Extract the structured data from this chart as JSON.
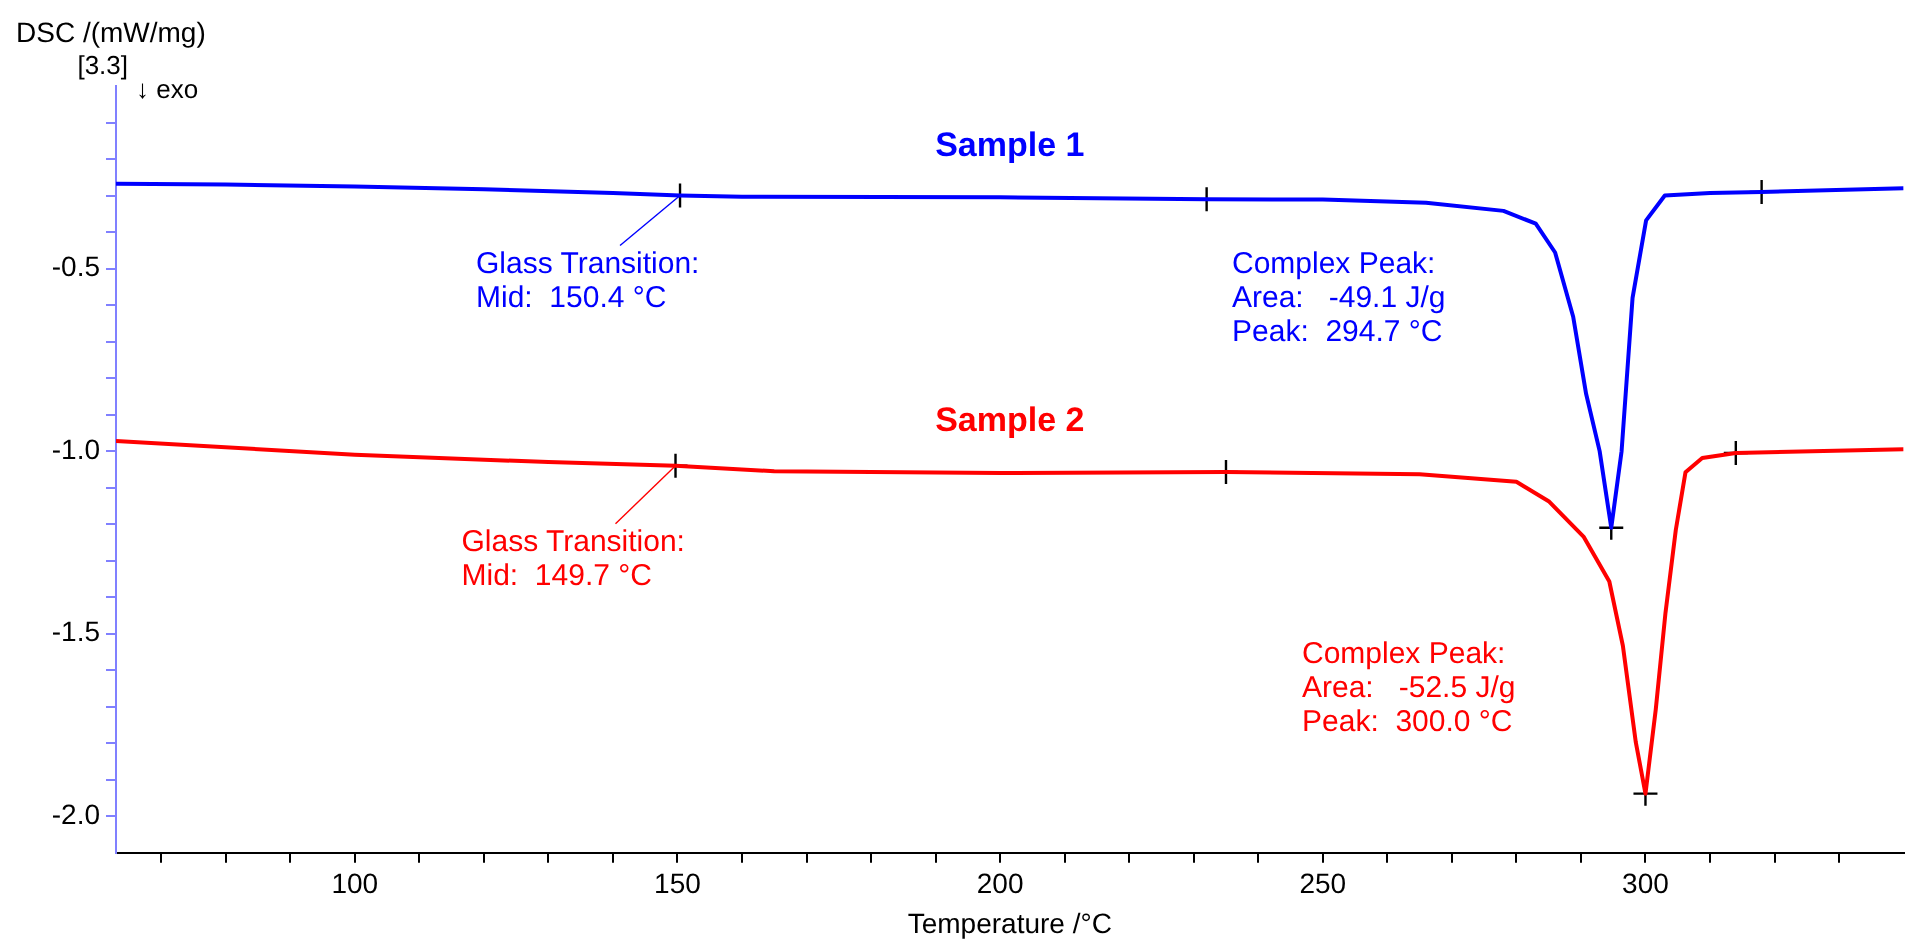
{
  "chart_data": {
    "type": "line",
    "xlabel": "Temperature /°C",
    "ylabel": "DSC /(mW/mg)",
    "xlim": [
      63,
      340
    ],
    "ylim": [
      -2.1,
      0
    ],
    "xticks": [
      {
        "value": 70,
        "label": null
      },
      {
        "value": 80,
        "label": null
      },
      {
        "value": 90,
        "label": null
      },
      100,
      {
        "value": 110,
        "label": null
      },
      {
        "value": 120,
        "label": null
      },
      {
        "value": 130,
        "label": null
      },
      {
        "value": 140,
        "label": null
      },
      150,
      {
        "value": 160,
        "label": null
      },
      {
        "value": 170,
        "label": null
      },
      {
        "value": 180,
        "label": null
      },
      {
        "value": 190,
        "label": null
      },
      200,
      {
        "value": 210,
        "label": null
      },
      {
        "value": 220,
        "label": null
      },
      {
        "value": 230,
        "label": null
      },
      {
        "value": 240,
        "label": null
      },
      250,
      {
        "value": 260,
        "label": null
      },
      {
        "value": 270,
        "label": null
      },
      {
        "value": 280,
        "label": null
      },
      {
        "value": 290,
        "label": null
      },
      300,
      {
        "value": 310,
        "label": null
      },
      {
        "value": 320,
        "label": null
      },
      {
        "value": 330,
        "label": null
      }
    ],
    "yticks": [
      {
        "value": -2.0,
        "label": "-2.0"
      },
      {
        "value": -1.9,
        "label": null
      },
      {
        "value": -1.8,
        "label": null
      },
      {
        "value": -1.7,
        "label": null
      },
      {
        "value": -1.6,
        "label": null
      },
      -1.5,
      {
        "value": -1.4,
        "label": null
      },
      {
        "value": -1.3,
        "label": null
      },
      {
        "value": -1.2,
        "label": null
      },
      {
        "value": -1.1,
        "label": null
      },
      {
        "value": -1.0,
        "label": "-1.0"
      },
      {
        "value": -0.9,
        "label": null
      },
      {
        "value": -0.8,
        "label": null
      },
      {
        "value": -0.7,
        "label": null
      },
      {
        "value": -0.6,
        "label": null
      },
      -0.5,
      {
        "value": -0.4,
        "label": null
      },
      {
        "value": -0.3,
        "label": null
      },
      {
        "value": -0.2,
        "label": null
      },
      {
        "value": -0.1,
        "label": null
      }
    ],
    "grid": false,
    "legend": false,
    "series": [
      {
        "name": "Sample 1",
        "color": "#0000ff",
        "x": [
          63,
          80,
          100,
          120,
          140,
          150.4,
          160,
          200,
          232,
          250,
          266,
          278,
          283,
          286,
          288.8,
          290.8,
          292.9,
          294.7,
          296.3,
          298,
          300.1,
          303,
          310,
          318,
          340
        ],
        "values": [
          -0.268,
          -0.27,
          -0.275,
          -0.283,
          -0.293,
          -0.3,
          -0.303,
          -0.305,
          -0.31,
          -0.311,
          -0.32,
          -0.342,
          -0.377,
          -0.456,
          -0.632,
          -0.843,
          -1.0,
          -1.21,
          -1.0,
          -0.58,
          -0.368,
          -0.3,
          -0.293,
          -0.29,
          -0.28
        ]
      },
      {
        "name": "Sample 2",
        "color": "#ff0000",
        "x": [
          63,
          100,
          130,
          149.7,
          165,
          200,
          235,
          265,
          280,
          285,
          290.4,
          294.4,
          296.5,
          298.5,
          300,
          301.6,
          303.1,
          304.7,
          306.2,
          308.8,
          314,
          340
        ],
        "values": [
          -0.972,
          -1.01,
          -1.03,
          -1.04,
          -1.055,
          -1.06,
          -1.057,
          -1.063,
          -1.084,
          -1.137,
          -1.234,
          -1.357,
          -1.533,
          -1.797,
          -1.938,
          -1.707,
          -1.443,
          -1.216,
          -1.058,
          -1.019,
          -1.005,
          -0.995
        ]
      },
      {
        "type": "scatter",
        "marker": "cross",
        "color": "#000000",
        "x": [
          150.4,
          232,
          318,
          294.7,
          149.7,
          235,
          314,
          300
        ],
        "values": [
          -0.3,
          -0.31,
          -0.29,
          -1.21,
          -1.04,
          -1.057,
          -1.005,
          -1.938
        ]
      }
    ],
    "annotations": [
      "[3.3]",
      "↓ exo",
      {
        "text": "Glass Transition:\nMid:  150.4 °C",
        "x": 150.4,
        "y": -0.3
      },
      "Complex Peak:\nArea:   -49.1 J/g\nPeak:  294.7 °C",
      {
        "text": "Glass Transition:\nMid:  149.7 °C",
        "x": 149.7,
        "y": -1.04
      },
      "Complex Peak:\nArea:   -52.5 J/g\nPeak:  300.0 °C"
    ]
  }
}
